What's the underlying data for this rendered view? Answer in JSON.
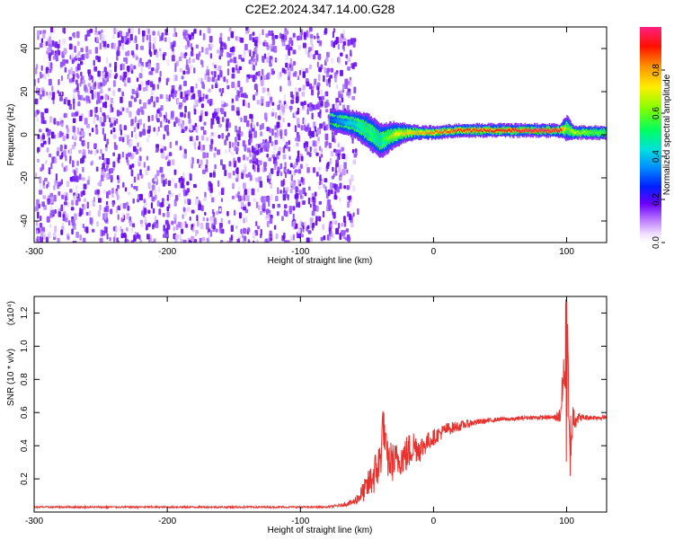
{
  "title": "C2E2.2024.347.14.00.G28",
  "chart_data": [
    {
      "type": "heatmap",
      "panel": "spectrogram",
      "xlabel": "Height of straight line (km)",
      "ylabel": "Frequency (Hz)",
      "xlim": [
        -300,
        130
      ],
      "ylim": [
        -50,
        50
      ],
      "x_ticks": [
        "-300",
        "-200",
        "-100",
        "0",
        "100"
      ],
      "y_ticks": [
        "-40",
        "-20",
        "0",
        "20",
        "40"
      ],
      "noise_region_x": [
        -300,
        -60
      ],
      "signal_track": {
        "x": [
          -78,
          -60,
          -50,
          -40,
          -30,
          -20,
          -10,
          0,
          20,
          40,
          60,
          80,
          95,
          100,
          105,
          120,
          130
        ],
        "freq_center": [
          7,
          5,
          2,
          -3,
          0,
          1,
          1,
          1,
          2,
          2,
          2,
          2,
          2,
          3,
          1,
          1,
          1
        ],
        "freq_halfwidth": [
          5,
          6,
          8,
          8,
          6,
          4,
          3,
          3,
          3,
          3,
          3,
          3,
          3,
          6,
          3,
          3,
          3
        ],
        "peak_amplitude": [
          0.3,
          0.45,
          0.55,
          0.5,
          0.7,
          0.75,
          0.8,
          0.85,
          0.9,
          0.9,
          0.95,
          1.0,
          0.95,
          0.6,
          0.7,
          0.6,
          0.55
        ]
      },
      "colorbar": {
        "label": "Normalized spectral amplitude",
        "range": [
          0,
          1
        ],
        "ticks": [
          "0.0",
          "0.2",
          "0.4",
          "0.6",
          "0.8"
        ],
        "colormap": "rainbow"
      }
    },
    {
      "type": "line",
      "panel": "snr",
      "xlabel": "Height of straight line (km)",
      "ylabel": "SNR (10 * v/v)",
      "scale_label": "(x10⁴)",
      "xlim": [
        -300,
        130
      ],
      "ylim": [
        0,
        1.3
      ],
      "x_ticks": [
        "-300",
        "-200",
        "-100",
        "0",
        "100"
      ],
      "y_ticks": [
        "0.2",
        "0.4",
        "0.6",
        "0.8",
        "1.0",
        "1.2"
      ],
      "series": [
        {
          "color": "#e8322e",
          "x": [
            -300,
            -250,
            -200,
            -150,
            -100,
            -80,
            -70,
            -60,
            -55,
            -50,
            -45,
            -40,
            -38,
            -35,
            -30,
            -25,
            -20,
            -15,
            -10,
            -5,
            0,
            10,
            20,
            30,
            40,
            50,
            60,
            70,
            80,
            90,
            95,
            98,
            100,
            102,
            105,
            110,
            120,
            130
          ],
          "y": [
            0.03,
            0.03,
            0.03,
            0.03,
            0.03,
            0.03,
            0.04,
            0.06,
            0.1,
            0.15,
            0.22,
            0.3,
            0.55,
            0.32,
            0.3,
            0.32,
            0.35,
            0.4,
            0.38,
            0.42,
            0.45,
            0.5,
            0.52,
            0.54,
            0.55,
            0.56,
            0.56,
            0.57,
            0.57,
            0.57,
            0.58,
            0.8,
            1.28,
            0.35,
            0.58,
            0.57,
            0.57,
            0.57
          ],
          "noise_amplitude": [
            0.005,
            0.005,
            0.005,
            0.005,
            0.005,
            0.005,
            0.01,
            0.02,
            0.05,
            0.08,
            0.12,
            0.15,
            0.12,
            0.12,
            0.12,
            0.1,
            0.12,
            0.1,
            0.08,
            0.06,
            0.05,
            0.04,
            0.03,
            0.02,
            0.015,
            0.012,
            0.012,
            0.012,
            0.012,
            0.012,
            0.05,
            0.2,
            0.3,
            0.25,
            0.1,
            0.02,
            0.015,
            0.015
          ]
        }
      ]
    }
  ]
}
